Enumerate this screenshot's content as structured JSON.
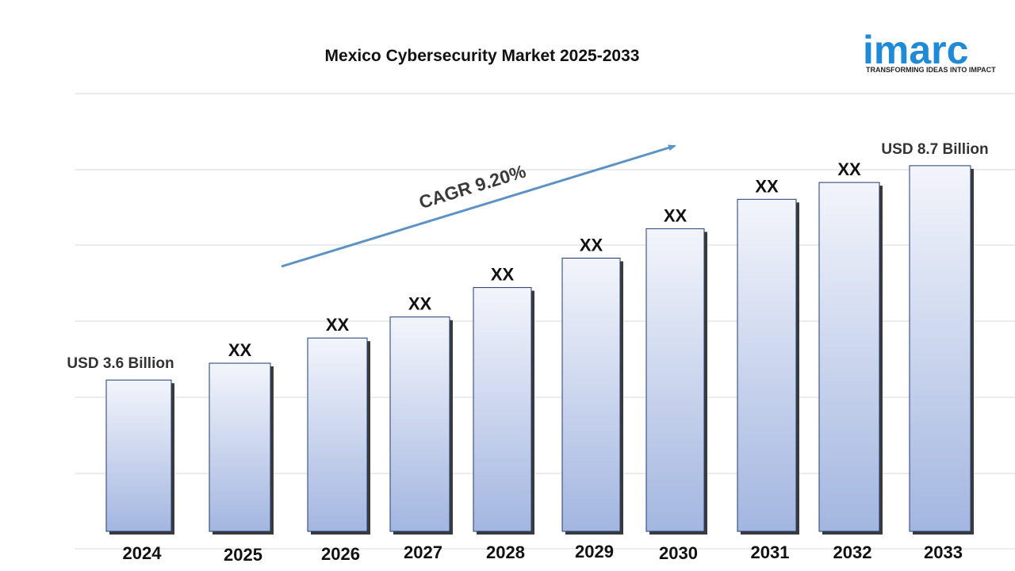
{
  "logo": {
    "word": "imarc",
    "tagline": "TRANSFORMING IDEAS INTO IMPACT",
    "color": "#1f8ad6"
  },
  "chart_data": {
    "type": "bar",
    "title": "Mexico Cybersecurity Market  2025-2033",
    "categories": [
      "2024",
      "2025",
      "2026",
      "2027",
      "2028",
      "2029",
      "2030",
      "2031",
      "2032",
      "2033"
    ],
    "values": [
      3.6,
      4.0,
      4.6,
      5.1,
      5.8,
      6.5,
      7.2,
      7.9,
      8.3,
      8.7
    ],
    "data_labels": [
      "USD 3.6 Billion",
      "XX",
      "XX",
      "XX",
      "XX",
      "XX",
      "XX",
      "XX",
      "XX",
      "USD 8.7 Billion"
    ],
    "annotation": "CAGR 9.20%",
    "grid": true,
    "bar_colors": {
      "top": "#f3f5fb",
      "bottom": "#a3b6e0",
      "border": "#1f3a73",
      "shadow": "#3a3a3a"
    },
    "arrow_color": "#5d93c4"
  }
}
